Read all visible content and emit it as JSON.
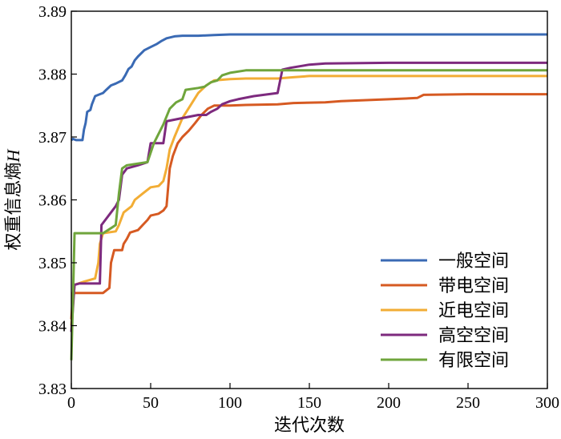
{
  "chart_data": {
    "type": "line",
    "xlabel": "迭代次数",
    "ylabel": "权重信息熵",
    "ylabel_var": "H",
    "xlim": [
      0,
      300
    ],
    "ylim": [
      3.83,
      3.89
    ],
    "xticks": [
      0,
      50,
      100,
      150,
      200,
      250,
      300
    ],
    "yticks": [
      3.83,
      3.84,
      3.85,
      3.86,
      3.87,
      3.88,
      3.89
    ],
    "xtick_labels": [
      "0",
      "50",
      "100",
      "150",
      "200",
      "250",
      "300"
    ],
    "ytick_labels": [
      "3.83",
      "3.84",
      "3.85",
      "3.86",
      "3.87",
      "3.88",
      "3.89"
    ],
    "grid": false,
    "legend_position": "bottom-right",
    "series": [
      {
        "name": "一般空间",
        "color": "#3A6AB4",
        "points": [
          [
            0,
            3.8695
          ],
          [
            1,
            3.8697
          ],
          [
            3,
            3.8695
          ],
          [
            7,
            3.8695
          ],
          [
            8,
            3.8712
          ],
          [
            9,
            3.8722
          ],
          [
            10,
            3.874
          ],
          [
            12,
            3.8743
          ],
          [
            13,
            3.8752
          ],
          [
            15,
            3.8765
          ],
          [
            18,
            3.8768
          ],
          [
            20,
            3.877
          ],
          [
            22,
            3.8775
          ],
          [
            25,
            3.8782
          ],
          [
            28,
            3.8785
          ],
          [
            32,
            3.879
          ],
          [
            34,
            3.8798
          ],
          [
            36,
            3.8808
          ],
          [
            38,
            3.8812
          ],
          [
            40,
            3.8822
          ],
          [
            42,
            3.8828
          ],
          [
            46,
            3.8838
          ],
          [
            50,
            3.8843
          ],
          [
            54,
            3.8848
          ],
          [
            57,
            3.8853
          ],
          [
            60,
            3.8857
          ],
          [
            65,
            3.886
          ],
          [
            70,
            3.8861
          ],
          [
            80,
            3.8861
          ],
          [
            90,
            3.8862
          ],
          [
            100,
            3.8863
          ],
          [
            150,
            3.8863
          ],
          [
            200,
            3.8863
          ],
          [
            300,
            3.8863
          ]
        ]
      },
      {
        "name": "带电空间",
        "color": "#D65A22",
        "points": [
          [
            0,
            3.841
          ],
          [
            1,
            3.8452
          ],
          [
            5,
            3.8452
          ],
          [
            20,
            3.8452
          ],
          [
            24,
            3.846
          ],
          [
            25,
            3.85
          ],
          [
            27,
            3.852
          ],
          [
            32,
            3.852
          ],
          [
            33,
            3.853
          ],
          [
            35,
            3.8538
          ],
          [
            37,
            3.8548
          ],
          [
            42,
            3.8552
          ],
          [
            45,
            3.856
          ],
          [
            48,
            3.8568
          ],
          [
            50,
            3.8575
          ],
          [
            55,
            3.8578
          ],
          [
            58,
            3.8583
          ],
          [
            60,
            3.859
          ],
          [
            62,
            3.865
          ],
          [
            64,
            3.867
          ],
          [
            67,
            3.869
          ],
          [
            70,
            3.87
          ],
          [
            74,
            3.871
          ],
          [
            78,
            3.8722
          ],
          [
            82,
            3.8735
          ],
          [
            86,
            3.8745
          ],
          [
            90,
            3.875
          ],
          [
            100,
            3.875
          ],
          [
            110,
            3.8751
          ],
          [
            130,
            3.8752
          ],
          [
            140,
            3.8754
          ],
          [
            160,
            3.8755
          ],
          [
            170,
            3.8757
          ],
          [
            200,
            3.876
          ],
          [
            218,
            3.8762
          ],
          [
            222,
            3.8767
          ],
          [
            250,
            3.8768
          ],
          [
            300,
            3.8768
          ]
        ]
      },
      {
        "name": "近电空间",
        "color": "#F2AD35",
        "points": [
          [
            0,
            3.84
          ],
          [
            2,
            3.8465
          ],
          [
            8,
            3.847
          ],
          [
            15,
            3.8475
          ],
          [
            17,
            3.85
          ],
          [
            18,
            3.853
          ],
          [
            20,
            3.8547
          ],
          [
            28,
            3.855
          ],
          [
            30,
            3.856
          ],
          [
            33,
            3.858
          ],
          [
            38,
            3.859
          ],
          [
            40,
            3.86
          ],
          [
            45,
            3.861
          ],
          [
            50,
            3.862
          ],
          [
            55,
            3.8622
          ],
          [
            58,
            3.863
          ],
          [
            60,
            3.865
          ],
          [
            62,
            3.868
          ],
          [
            65,
            3.87
          ],
          [
            70,
            3.873
          ],
          [
            75,
            3.875
          ],
          [
            80,
            3.877
          ],
          [
            85,
            3.8782
          ],
          [
            90,
            3.879
          ],
          [
            100,
            3.8792
          ],
          [
            110,
            3.8793
          ],
          [
            130,
            3.8793
          ],
          [
            140,
            3.8795
          ],
          [
            150,
            3.8797
          ],
          [
            200,
            3.8797
          ],
          [
            300,
            3.8797
          ]
        ]
      },
      {
        "name": "高空空间",
        "color": "#7D2A7E",
        "points": [
          [
            0,
            3.839
          ],
          [
            2,
            3.8465
          ],
          [
            5,
            3.8467
          ],
          [
            18,
            3.8467
          ],
          [
            19,
            3.856
          ],
          [
            22,
            3.857
          ],
          [
            25,
            3.858
          ],
          [
            28,
            3.859
          ],
          [
            30,
            3.86
          ],
          [
            32,
            3.864
          ],
          [
            35,
            3.865
          ],
          [
            42,
            3.8655
          ],
          [
            48,
            3.866
          ],
          [
            50,
            3.869
          ],
          [
            58,
            3.869
          ],
          [
            60,
            3.8725
          ],
          [
            70,
            3.873
          ],
          [
            80,
            3.8735
          ],
          [
            85,
            3.8735
          ],
          [
            88,
            3.874
          ],
          [
            92,
            3.8745
          ],
          [
            95,
            3.8752
          ],
          [
            100,
            3.8757
          ],
          [
            105,
            3.876
          ],
          [
            115,
            3.8765
          ],
          [
            130,
            3.877
          ],
          [
            133,
            3.8807
          ],
          [
            138,
            3.881
          ],
          [
            150,
            3.8815
          ],
          [
            160,
            3.8817
          ],
          [
            200,
            3.8818
          ],
          [
            300,
            3.8818
          ]
        ]
      },
      {
        "name": "有限空间",
        "color": "#6FA53C",
        "points": [
          [
            0,
            3.8345
          ],
          [
            1,
            3.844
          ],
          [
            2,
            3.8547
          ],
          [
            20,
            3.8547
          ],
          [
            25,
            3.8555
          ],
          [
            28,
            3.856
          ],
          [
            30,
            3.861
          ],
          [
            32,
            3.865
          ],
          [
            35,
            3.8655
          ],
          [
            48,
            3.866
          ],
          [
            52,
            3.869
          ],
          [
            58,
            3.872
          ],
          [
            62,
            3.8745
          ],
          [
            66,
            3.8755
          ],
          [
            70,
            3.876
          ],
          [
            72,
            3.8775
          ],
          [
            80,
            3.8778
          ],
          [
            84,
            3.878
          ],
          [
            88,
            3.8787
          ],
          [
            92,
            3.879
          ],
          [
            95,
            3.8798
          ],
          [
            100,
            3.8802
          ],
          [
            110,
            3.8806
          ],
          [
            150,
            3.8806
          ],
          [
            200,
            3.8806
          ],
          [
            300,
            3.8806
          ]
        ]
      }
    ]
  }
}
